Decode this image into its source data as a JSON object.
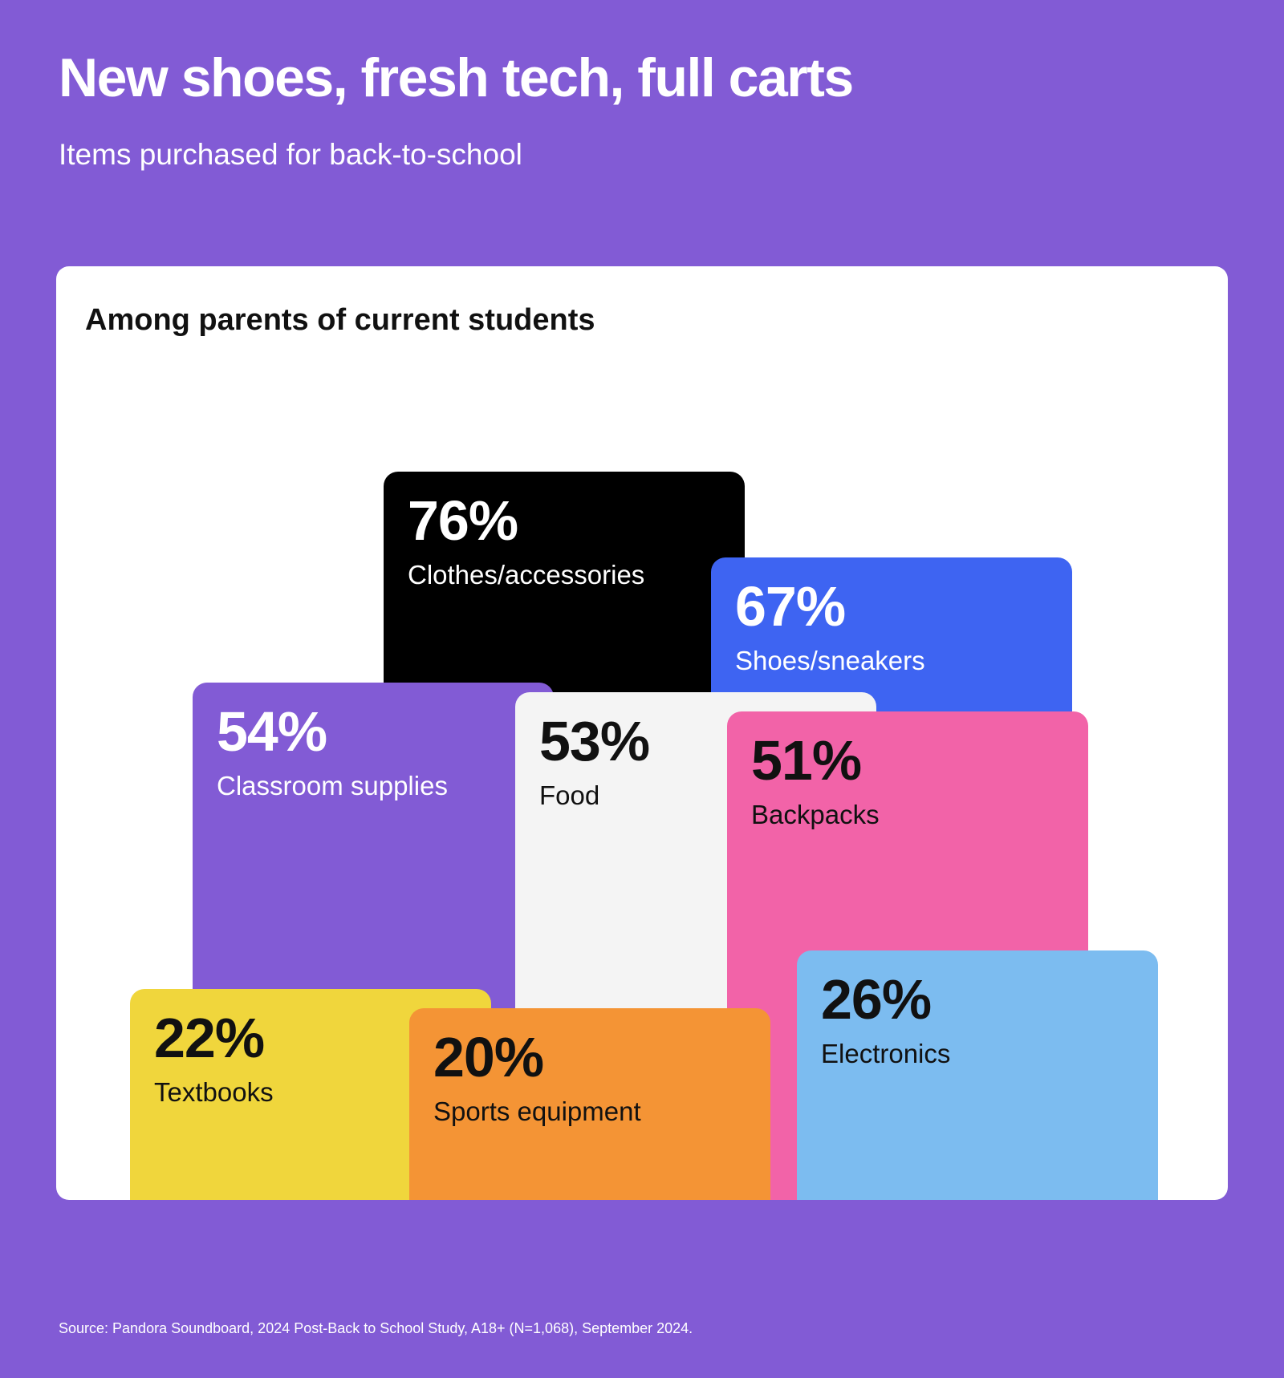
{
  "header": {
    "title": "New shoes, fresh tech, full carts",
    "subtitle": "Items purchased for back-to-school"
  },
  "card": {
    "heading": "Among parents of current students"
  },
  "chart_data": {
    "type": "bar",
    "title": "New shoes, fresh tech, full carts",
    "subtitle": "Items purchased for back-to-school",
    "categories": [
      "Clothes/accessories",
      "Shoes/sneakers",
      "Classroom supplies",
      "Food",
      "Backpacks",
      "Electronics",
      "Textbooks",
      "Sports equipment"
    ],
    "series": [
      {
        "values": [
          76,
          67,
          54,
          53,
          51,
          26,
          22,
          20
        ],
        "labels": [
          "76%",
          "67%",
          "54%",
          "53%",
          "51%",
          "26%",
          "22%",
          "20%"
        ],
        "colors": [
          "#000000",
          "#3E64F2",
          "#825BD5",
          "#F4F4F4",
          "#F263A8",
          "#7CBCF0",
          "#F0D63C",
          "#F49435"
        ],
        "text_colors": [
          "#ffffff",
          "#ffffff",
          "#ffffff",
          "#111111",
          "#111111",
          "#111111",
          "#111111",
          "#111111"
        ]
      }
    ],
    "ylim": [
      0,
      100
    ],
    "grid": false,
    "legend": "none"
  },
  "footer": {
    "source": "Source: Pandora Soundboard, 2024 Post-Back to School Study, A18+ (N=1,068), September 2024."
  }
}
